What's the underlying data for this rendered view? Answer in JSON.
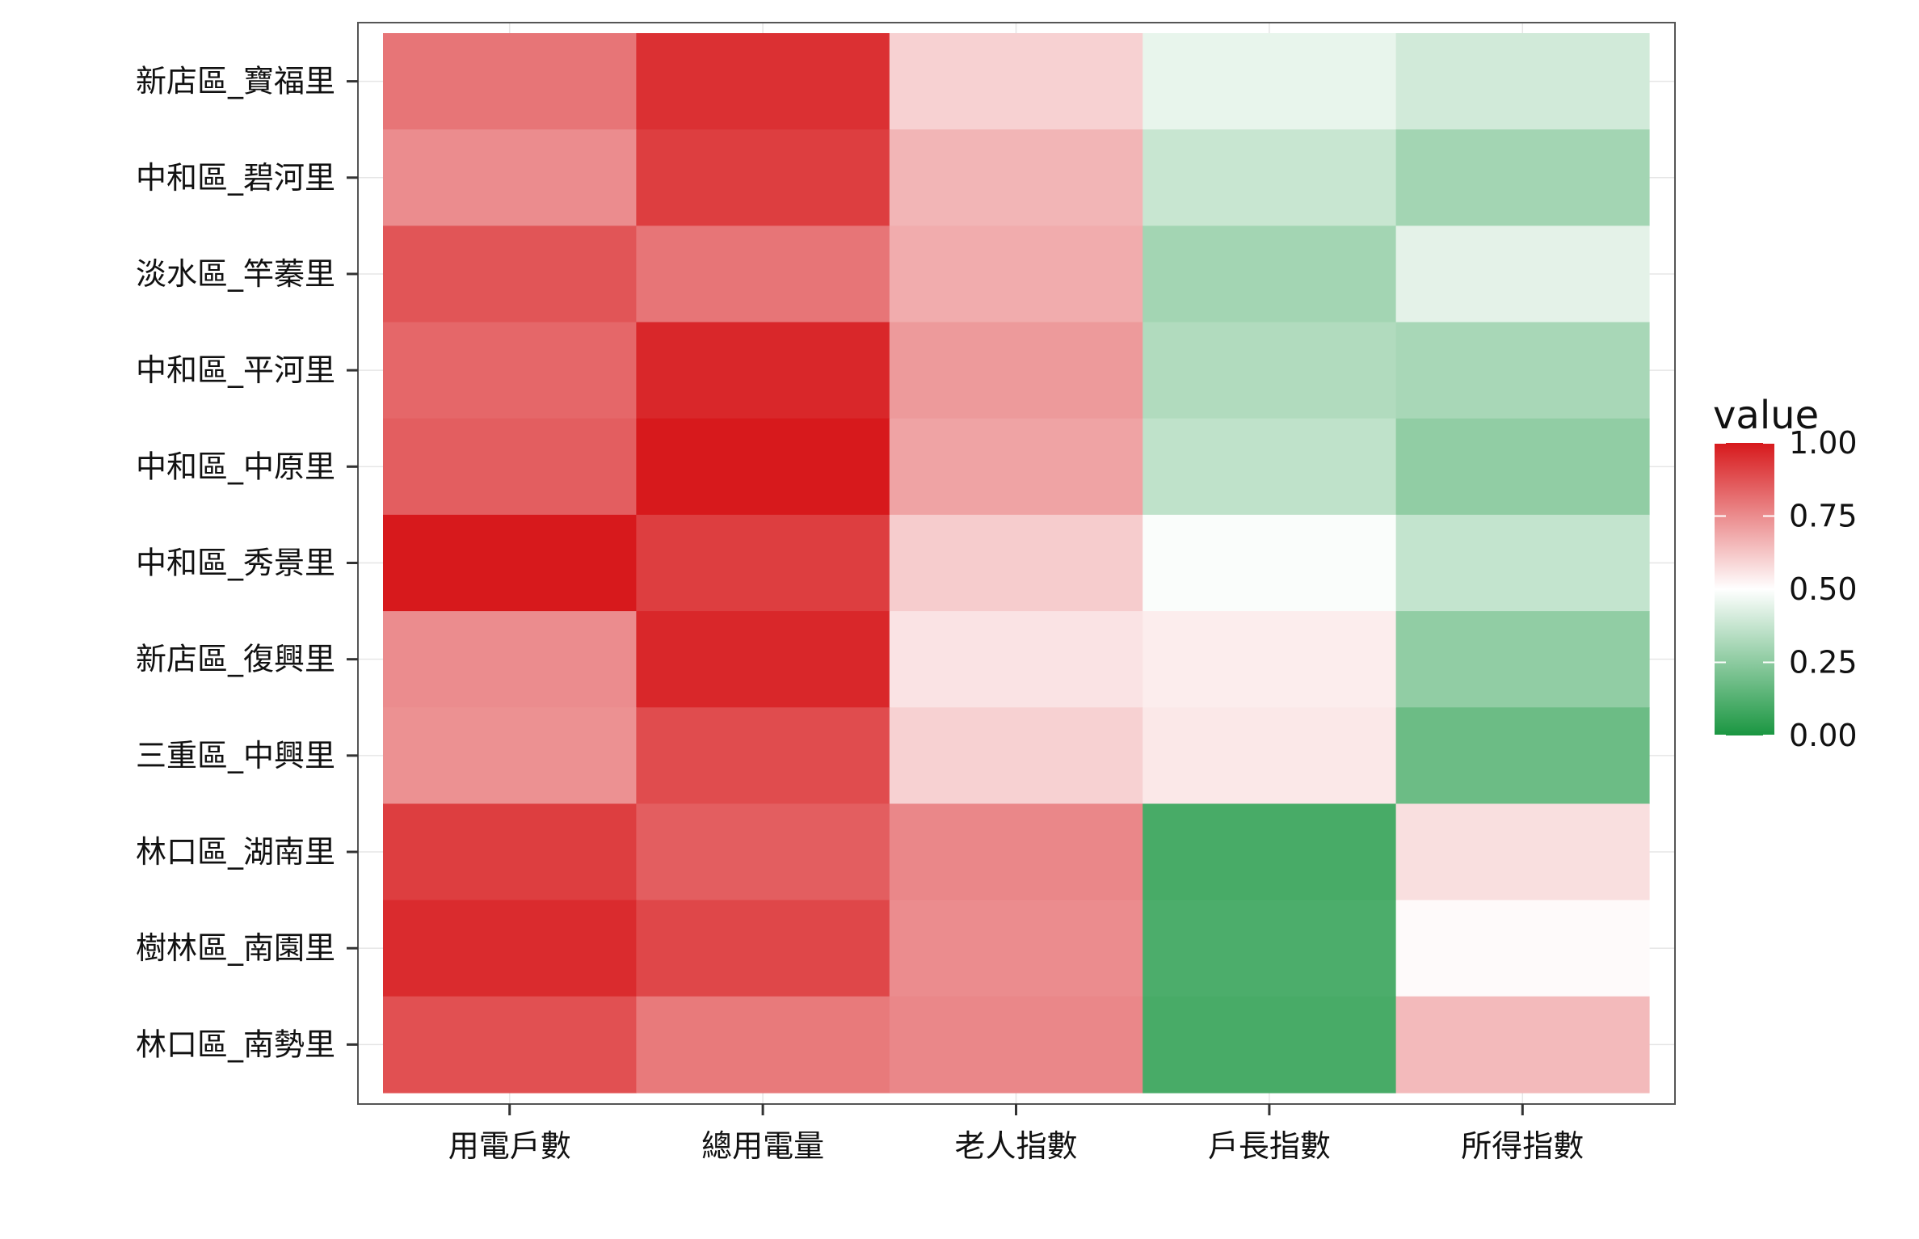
{
  "chart_data": {
    "type": "heatmap",
    "title": "",
    "xlabel": "",
    "ylabel": "",
    "x_categories": [
      "用電戶數",
      "總用電量",
      "老人指數",
      "戶長指數",
      "所得指數"
    ],
    "y_categories": [
      "新店區_寶福里",
      "中和區_碧河里",
      "淡水區_竿蓁里",
      "中和區_平河里",
      "中和區_中原里",
      "中和區_秀景里",
      "新店區_復興里",
      "三重區_中興里",
      "林口區_湖南里",
      "樹林區_南園里",
      "林口區_南勢里"
    ],
    "values": [
      [
        0.8,
        0.95,
        0.6,
        0.45,
        0.4
      ],
      [
        0.75,
        0.92,
        0.66,
        0.38,
        0.3
      ],
      [
        0.87,
        0.8,
        0.68,
        0.3,
        0.44
      ],
      [
        0.83,
        0.97,
        0.72,
        0.33,
        0.31
      ],
      [
        0.85,
        1.0,
        0.7,
        0.36,
        0.26
      ],
      [
        1.0,
        0.92,
        0.61,
        0.49,
        0.37
      ],
      [
        0.75,
        0.97,
        0.56,
        0.54,
        0.26
      ],
      [
        0.74,
        0.89,
        0.6,
        0.55,
        0.18
      ],
      [
        0.92,
        0.85,
        0.76,
        0.1,
        0.57
      ],
      [
        0.96,
        0.9,
        0.75,
        0.11,
        0.51
      ],
      [
        0.88,
        0.79,
        0.76,
        0.1,
        0.65
      ]
    ],
    "legend": {
      "title": "value",
      "breaks": [
        "0.00",
        "0.25",
        "0.50",
        "0.75",
        "1.00"
      ],
      "break_values": [
        0,
        0.25,
        0.5,
        0.75,
        1
      ],
      "position": "right"
    },
    "colors": {
      "low": "#1a9641",
      "mid": "#ffffff",
      "high": "#d7191c"
    },
    "value_range": [
      0,
      1
    ],
    "grid": true
  }
}
